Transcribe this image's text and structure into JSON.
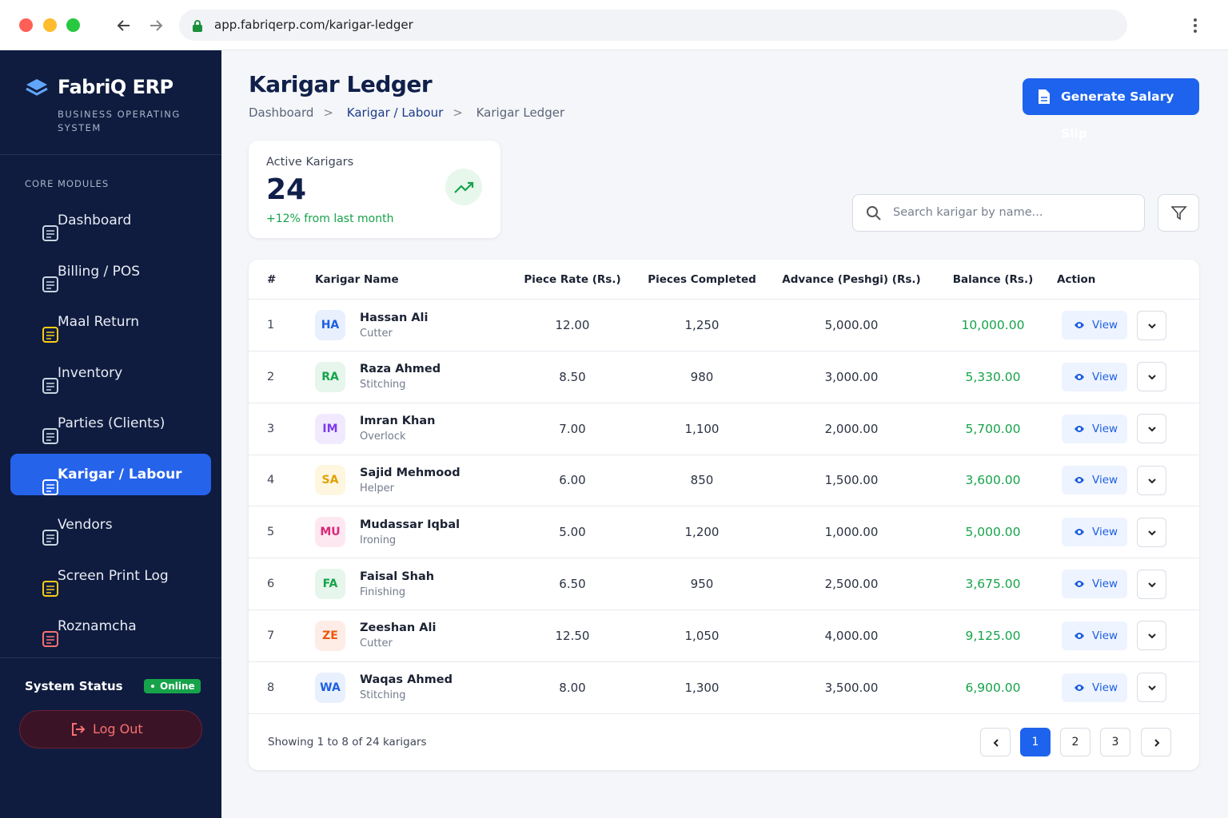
{
  "browser": {
    "url": "app.fabriqerp.com/karigar-ledger"
  },
  "sidebar": {
    "brand": "FabriQ ERP",
    "tagline": "BUSINESS OPERATING SYSTEM",
    "section": "CORE MODULES",
    "nav": [
      "Dashboard",
      "Billing / POS",
      "Maal Return",
      "Inventory",
      "Parties (Clients)",
      "Karigar / Labour",
      "Vendors",
      "Screen Print Log",
      "Roznamcha"
    ],
    "status_label": "System Status",
    "status_badge": "Online",
    "logout": "Log Out"
  },
  "header": {
    "title": "Karigar Ledger",
    "breadcrumb": [
      "Dashboard",
      "Karigar / Labour",
      "Karigar Ledger"
    ],
    "action": "Generate Salary Slip"
  },
  "stat": {
    "label": "Active Karigars",
    "value": 24,
    "change": "+12% from last month"
  },
  "search": {
    "placeholder": "Search karigar by name..."
  },
  "table": {
    "columns": [
      "#",
      "Karigar Name",
      "Piece Rate (Rs.)",
      "Pieces Completed",
      "Advance (Peshgi) (Rs.)",
      "Balance (Rs.)",
      "Action"
    ],
    "rows": [
      {
        "no": 1,
        "initials": "HA",
        "name": "Hassan Ali",
        "role": "Cutter",
        "piece_rate": "12.00",
        "pieces": "1,250",
        "advance": "5,000.00",
        "balance": "10,000.00",
        "action": "View"
      },
      {
        "no": 2,
        "initials": "RA",
        "name": "Raza Ahmed",
        "role": "Stitching",
        "piece_rate": "8.50",
        "pieces": "980",
        "advance": "3,000.00",
        "balance": "5,330.00",
        "action": "View"
      },
      {
        "no": 3,
        "initials": "IM",
        "name": "Imran Khan",
        "role": "Overlock",
        "piece_rate": "7.00",
        "pieces": "1,100",
        "advance": "2,000.00",
        "balance": "5,700.00",
        "action": "View"
      },
      {
        "no": 4,
        "initials": "SA",
        "name": "Sajid Mehmood",
        "role": "Helper",
        "piece_rate": "6.00",
        "pieces": "850",
        "advance": "1,500.00",
        "balance": "3,600.00",
        "action": "View"
      },
      {
        "no": 5,
        "initials": "MU",
        "name": "Mudassar Iqbal",
        "role": "Ironing",
        "piece_rate": "5.00",
        "pieces": "1,200",
        "advance": "1,000.00",
        "balance": "5,000.00",
        "action": "View"
      },
      {
        "no": 6,
        "initials": "FA",
        "name": "Faisal Shah",
        "role": "Finishing",
        "piece_rate": "6.50",
        "pieces": "950",
        "advance": "2,500.00",
        "balance": "3,675.00",
        "action": "View"
      },
      {
        "no": 7,
        "initials": "ZE",
        "name": "Zeeshan Ali",
        "role": "Cutter",
        "piece_rate": "12.50",
        "pieces": "1,050",
        "advance": "4,000.00",
        "balance": "9,125.00",
        "action": "View"
      },
      {
        "no": 8,
        "initials": "WA",
        "name": "Waqas Ahmed",
        "role": "Stitching",
        "piece_rate": "8.00",
        "pieces": "1,300",
        "advance": "3,500.00",
        "balance": "6,900.00",
        "action": "View"
      }
    ],
    "footer": "Showing 1 to 8 of 24 karigars",
    "pages": [
      1,
      2,
      3
    ]
  }
}
